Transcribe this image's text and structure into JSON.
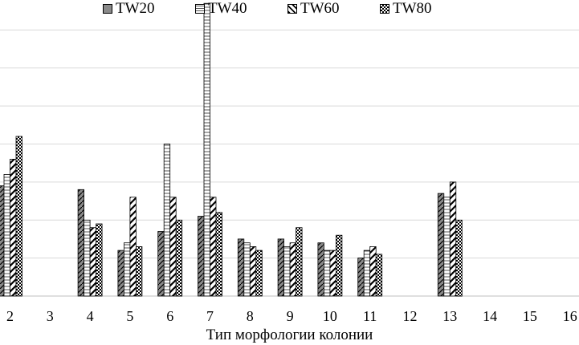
{
  "chart_data": {
    "type": "bar",
    "title": "",
    "xlabel": "Тип морфологии колонии",
    "ylabel": "",
    "categories": [
      "2",
      "3",
      "4",
      "5",
      "6",
      "7",
      "8",
      "9",
      "10",
      "11",
      "12",
      "13",
      "14",
      "15",
      "16"
    ],
    "series": [
      {
        "name": "TW20",
        "values": [
          29,
          0,
          28,
          12,
          17,
          21,
          15,
          15,
          14,
          10,
          0,
          27,
          0,
          0,
          0
        ]
      },
      {
        "name": "TW40",
        "values": [
          32,
          0,
          20,
          14,
          40,
          77,
          14,
          13,
          12,
          12,
          0,
          26,
          0,
          0,
          0
        ]
      },
      {
        "name": "TW60",
        "values": [
          36,
          0,
          18,
          26,
          26,
          26,
          13,
          14,
          12,
          13,
          0,
          30,
          0,
          0,
          0
        ]
      },
      {
        "name": "TW80",
        "values": [
          42,
          0,
          19,
          13,
          20,
          22,
          12,
          18,
          16,
          11,
          0,
          20,
          0,
          0,
          0
        ]
      }
    ],
    "ylim": [
      0,
      80
    ],
    "grid": true,
    "legend_position": "top"
  },
  "colors": {
    "bar_fill": "#8a8a8a",
    "bar_alt": "#ffffff",
    "stroke": "#000000",
    "grid": "#d9d9d9",
    "axis": "#bfbfbf"
  }
}
